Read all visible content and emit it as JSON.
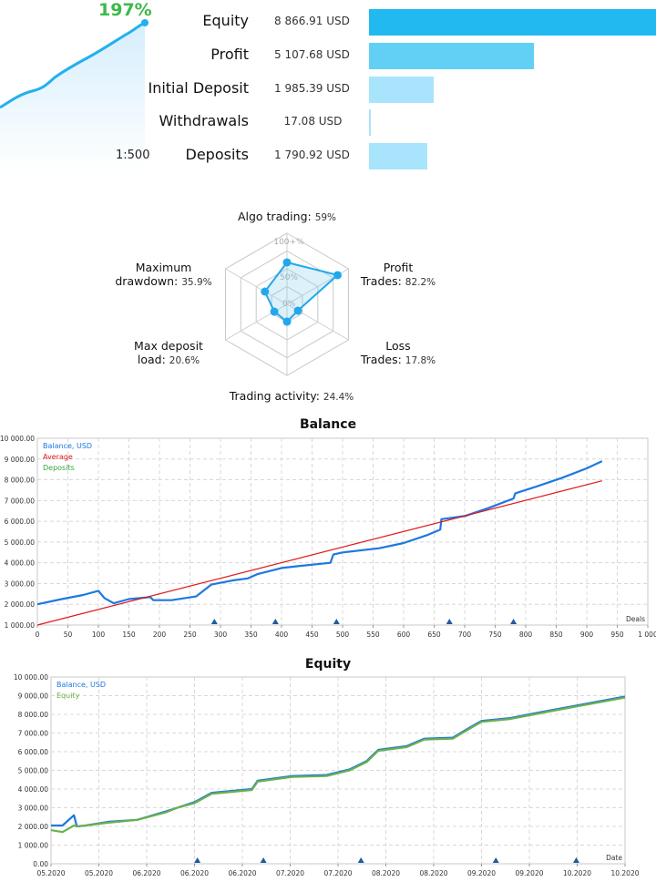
{
  "summary": {
    "growth_label": "197%",
    "leverage": "1:500",
    "rows": [
      {
        "label": "Equity",
        "value": "8 866.91 USD",
        "amount": 8866.91,
        "color": "#22b8f0"
      },
      {
        "label": "Profit",
        "value": "5 107.68 USD",
        "amount": 5107.68,
        "color": "#62d0f5"
      },
      {
        "label": "Initial Deposit",
        "value": "1 985.39 USD",
        "amount": 1985.39,
        "color": "#a8e4fb"
      },
      {
        "label": "Withdrawals",
        "value": "17.08 USD",
        "amount": 17.08,
        "color": "#a8e4fb"
      },
      {
        "label": "Deposits",
        "value": "1 790.92 USD",
        "amount": 1790.92,
        "color": "#a8e4fb"
      }
    ],
    "max_amount": 8866.91
  },
  "radar": {
    "ring_labels": [
      "100+%",
      "50%",
      "0%"
    ],
    "axes": [
      {
        "name": "Algo trading:",
        "pct_label": "59%",
        "value": 59
      },
      {
        "name": "Profit Trades:",
        "pct_label": "82.2%",
        "value": 82.2,
        "line1": "Profit",
        "line2": "Trades:"
      },
      {
        "name": "Loss Trades:",
        "pct_label": "17.8%",
        "value": 17.8,
        "line1": "Loss",
        "line2": "Trades:"
      },
      {
        "name": "Trading activity:",
        "pct_label": "24.4%",
        "value": 24.4
      },
      {
        "name": "Max deposit load:",
        "pct_label": "20.6%",
        "value": 20.6,
        "line1": "Max deposit",
        "line2": "load:"
      },
      {
        "name": "Maximum drawdown:",
        "pct_label": "35.9%",
        "value": 35.9,
        "line1": "Maximum",
        "line2": "drawdown:"
      }
    ]
  },
  "chart_data": [
    {
      "type": "line",
      "title": "Balance",
      "xlabel": "Deals",
      "xlim": [
        0,
        1000
      ],
      "ylim": [
        1000,
        10000
      ],
      "x_ticks": [
        "0",
        "50",
        "100",
        "150",
        "200",
        "250",
        "300",
        "350",
        "400",
        "450",
        "500",
        "550",
        "600",
        "650",
        "700",
        "750",
        "800",
        "850",
        "900",
        "950",
        "1 000"
      ],
      "y_ticks": [
        "1 000.00",
        "2 000.00",
        "3 000.00",
        "4 000.00",
        "5 000.00",
        "6 000.00",
        "7 000.00",
        "8 000.00",
        "9 000.00",
        "10 000.00"
      ],
      "legend": [
        "Balance, USD",
        "Average",
        "Deposits"
      ],
      "legend_placement": "top-left",
      "grid": true,
      "series": [
        {
          "name": "Balance, USD",
          "color": "#1e78e0",
          "x": [
            0,
            40,
            75,
            100,
            110,
            125,
            150,
            185,
            190,
            220,
            260,
            285,
            320,
            345,
            360,
            400,
            430,
            480,
            485,
            500,
            560,
            600,
            640,
            660,
            662,
            700,
            740,
            780,
            783,
            820,
            860,
            900,
            925
          ],
          "y": [
            2000,
            2250,
            2450,
            2650,
            2300,
            2050,
            2250,
            2350,
            2200,
            2200,
            2380,
            2950,
            3150,
            3250,
            3450,
            3750,
            3850,
            4000,
            4400,
            4500,
            4700,
            4950,
            5350,
            5600,
            6100,
            6250,
            6650,
            7100,
            7350,
            7700,
            8100,
            8550,
            8900
          ]
        },
        {
          "name": "Average",
          "color": "#e01818",
          "x": [
            0,
            925
          ],
          "y": [
            1000,
            7950
          ]
        }
      ],
      "deposit_markers_x": [
        290,
        390,
        490,
        675,
        780
      ]
    },
    {
      "type": "line",
      "title": "Equity",
      "xlabel": "Date",
      "ylim": [
        0,
        10000
      ],
      "x_ticks": [
        "05.2020",
        "05.2020",
        "06.2020",
        "06.2020",
        "06.2020",
        "07.2020",
        "07.2020",
        "08.2020",
        "08.2020",
        "09.2020",
        "09.2020",
        "10.2020",
        "10.2020"
      ],
      "y_ticks": [
        "0.00",
        "1 000.00",
        "2 000.00",
        "3 000.00",
        "4 000.00",
        "5 000.00",
        "6 000.00",
        "7 000.00",
        "8 000.00",
        "9 000.00",
        "10 000.00"
      ],
      "legend": [
        "Balance, USD",
        "Equity"
      ],
      "legend_placement": "top-left",
      "grid": true,
      "series": [
        {
          "name": "Balance, USD",
          "color": "#1e78e0",
          "x": [
            0,
            0.02,
            0.04,
            0.045,
            0.06,
            0.1,
            0.15,
            0.2,
            0.22,
            0.25,
            0.28,
            0.35,
            0.36,
            0.42,
            0.48,
            0.52,
            0.55,
            0.57,
            0.62,
            0.65,
            0.7,
            0.73,
            0.75,
            0.8,
            0.85,
            0.92,
            1.0
          ],
          "y": [
            2050,
            2050,
            2600,
            2000,
            2050,
            2250,
            2350,
            2800,
            3000,
            3300,
            3800,
            4000,
            4450,
            4700,
            4750,
            5050,
            5500,
            6100,
            6300,
            6700,
            6750,
            7300,
            7650,
            7800,
            8100,
            8500,
            8950
          ]
        },
        {
          "name": "Equity",
          "color": "#6ab04c",
          "x": [
            0,
            0.02,
            0.04,
            0.045,
            0.06,
            0.1,
            0.15,
            0.2,
            0.22,
            0.25,
            0.28,
            0.35,
            0.36,
            0.42,
            0.48,
            0.52,
            0.55,
            0.57,
            0.62,
            0.65,
            0.7,
            0.73,
            0.75,
            0.8,
            0.85,
            0.92,
            1.0
          ],
          "y": [
            1800,
            1700,
            2050,
            2000,
            2050,
            2200,
            2350,
            2750,
            3000,
            3250,
            3750,
            3950,
            4400,
            4650,
            4700,
            5000,
            5450,
            6050,
            6250,
            6650,
            6700,
            7250,
            7600,
            7750,
            8050,
            8450,
            8900
          ]
        }
      ],
      "deposit_markers_x": [
        0.255,
        0.37,
        0.54,
        0.775,
        0.915
      ]
    }
  ]
}
